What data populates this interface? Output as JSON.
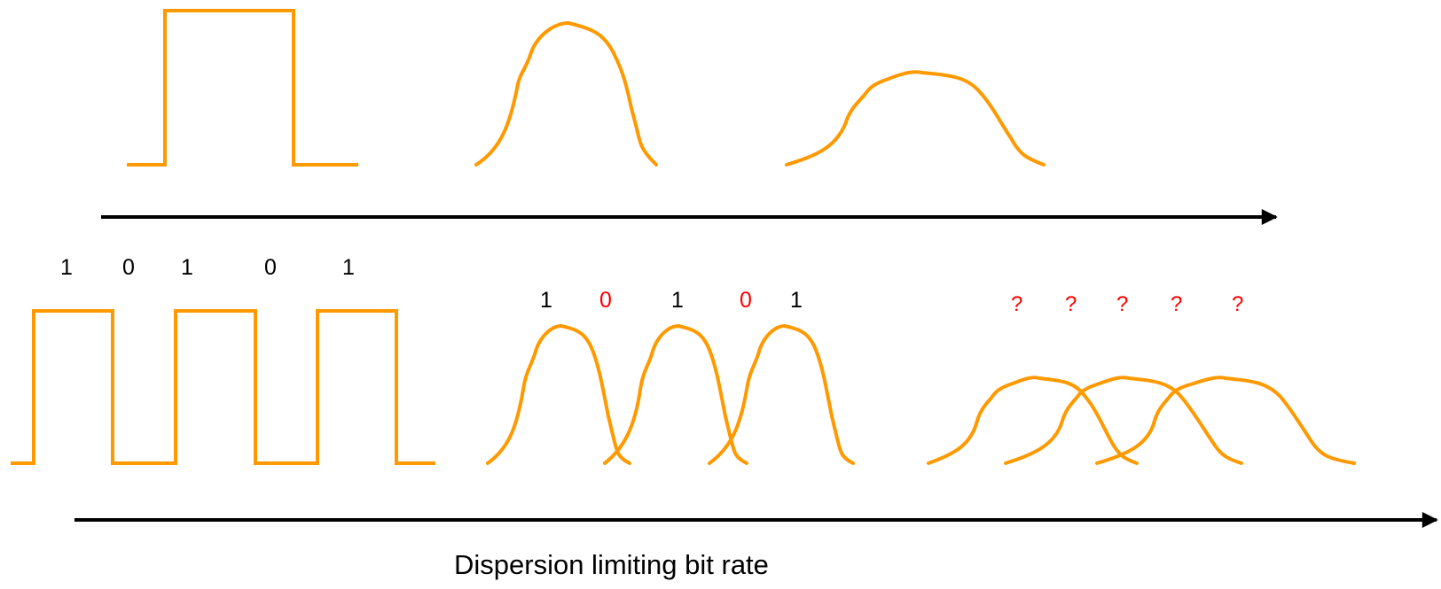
{
  "colors": {
    "pulse": "#ff9900",
    "axis": "#000000",
    "highlight": "#ff0000"
  },
  "input_bits": [
    "1",
    "0",
    "1",
    "0",
    "1"
  ],
  "dispersed_bits": [
    {
      "text": "1",
      "color": "black"
    },
    {
      "text": "0",
      "color": "red"
    },
    {
      "text": "1",
      "color": "black"
    },
    {
      "text": "0",
      "color": "red"
    },
    {
      "text": "1",
      "color": "black"
    }
  ],
  "unknown_bits": [
    "?",
    "?",
    "?",
    "?",
    "?"
  ],
  "caption": "Dispersion limiting bit rate"
}
